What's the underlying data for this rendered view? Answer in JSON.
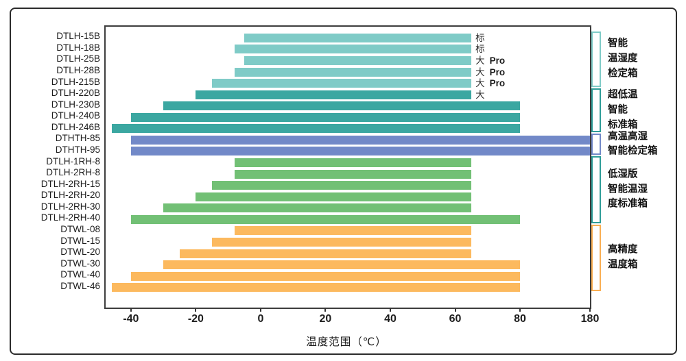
{
  "chart_data": {
    "type": "bar",
    "orientation": "horizontal",
    "title": "",
    "xlabel": "温度范围（℃）",
    "ylabel": "",
    "grid": false,
    "xlim": [
      -48,
      180
    ],
    "axis_break": {
      "note": "linear from -48 to 80, compressed segment 80 to 180 at right edge",
      "linear_max": 80,
      "max": 180
    },
    "x_ticks": [
      {
        "value": -40,
        "label": "-40"
      },
      {
        "value": -20,
        "label": "-20"
      },
      {
        "value": 0,
        "label": "0"
      },
      {
        "value": 20,
        "label": "20"
      },
      {
        "value": 40,
        "label": "40"
      },
      {
        "value": 60,
        "label": "60"
      },
      {
        "value": 80,
        "label": "80"
      },
      {
        "value": 180,
        "label": "180"
      }
    ],
    "rows": [
      {
        "model": "DTLH-15B",
        "start": -5,
        "end": 65,
        "group": 0,
        "annotation_cn": "标",
        "annotation_pro": ""
      },
      {
        "model": "DTLH-18B",
        "start": -8,
        "end": 65,
        "group": 0,
        "annotation_cn": "标",
        "annotation_pro": ""
      },
      {
        "model": "DTLH-25B",
        "start": -5,
        "end": 65,
        "group": 0,
        "annotation_cn": "大",
        "annotation_pro": "Pro"
      },
      {
        "model": "DTLH-28B",
        "start": -8,
        "end": 65,
        "group": 0,
        "annotation_cn": "大",
        "annotation_pro": "Pro"
      },
      {
        "model": "DTLH-215B",
        "start": -15,
        "end": 65,
        "group": 0,
        "annotation_cn": "大",
        "annotation_pro": "Pro"
      },
      {
        "model": "DTLH-220B",
        "start": -20,
        "end": 65,
        "group": 1,
        "annotation_cn": "大",
        "annotation_pro": ""
      },
      {
        "model": "DTLH-230B",
        "start": -30,
        "end": 80,
        "group": 1,
        "annotation_cn": "",
        "annotation_pro": ""
      },
      {
        "model": "DTLH-240B",
        "start": -40,
        "end": 80,
        "group": 1,
        "annotation_cn": "",
        "annotation_pro": ""
      },
      {
        "model": "DTLH-246B",
        "start": -46,
        "end": 80,
        "group": 1,
        "annotation_cn": "",
        "annotation_pro": ""
      },
      {
        "model": "DTHTH-85",
        "start": -40,
        "end": 180,
        "group": 2,
        "annotation_cn": "",
        "annotation_pro": ""
      },
      {
        "model": "DTHTH-95",
        "start": -40,
        "end": 180,
        "group": 2,
        "annotation_cn": "",
        "annotation_pro": ""
      },
      {
        "model": "DTLH-1RH-8",
        "start": -8,
        "end": 65,
        "group": 3,
        "annotation_cn": "",
        "annotation_pro": ""
      },
      {
        "model": "DTLH-2RH-8",
        "start": -8,
        "end": 65,
        "group": 3,
        "annotation_cn": "",
        "annotation_pro": ""
      },
      {
        "model": "DTLH-2RH-15",
        "start": -15,
        "end": 65,
        "group": 3,
        "annotation_cn": "",
        "annotation_pro": ""
      },
      {
        "model": "DTLH-2RH-20",
        "start": -20,
        "end": 65,
        "group": 3,
        "annotation_cn": "",
        "annotation_pro": ""
      },
      {
        "model": "DTLH-2RH-30",
        "start": -30,
        "end": 65,
        "group": 3,
        "annotation_cn": "",
        "annotation_pro": ""
      },
      {
        "model": "DTLH-2RH-40",
        "start": -40,
        "end": 80,
        "group": 3,
        "annotation_cn": "",
        "annotation_pro": ""
      },
      {
        "model": "DTWL-08",
        "start": -8,
        "end": 65,
        "group": 4,
        "annotation_cn": "",
        "annotation_pro": ""
      },
      {
        "model": "DTWL-15",
        "start": -15,
        "end": 65,
        "group": 4,
        "annotation_cn": "",
        "annotation_pro": ""
      },
      {
        "model": "DTWL-20",
        "start": -25,
        "end": 65,
        "group": 4,
        "annotation_cn": "",
        "annotation_pro": ""
      },
      {
        "model": "DTWL-30",
        "start": -30,
        "end": 80,
        "group": 4,
        "annotation_cn": "",
        "annotation_pro": ""
      },
      {
        "model": "DTWL-40",
        "start": -40,
        "end": 80,
        "group": 4,
        "annotation_cn": "",
        "annotation_pro": ""
      },
      {
        "model": "DTWL-46",
        "start": -46,
        "end": 80,
        "group": 4,
        "annotation_cn": "",
        "annotation_pro": ""
      }
    ],
    "groups": [
      {
        "label": "智能温湿度检定箱",
        "label_lines": [
          "智能",
          "温湿度",
          "检定箱"
        ],
        "bar_color": "#7fcbc7",
        "bracket_color": "#7fcbc7",
        "row_first": 0,
        "row_last": 4
      },
      {
        "label": "超低温智能标准箱",
        "label_lines": [
          "超低温",
          "智能",
          "标准箱"
        ],
        "bar_color": "#3ba7a1",
        "bracket_color": "#2e9d98",
        "row_first": 5,
        "row_last": 8
      },
      {
        "label": "高温高湿智能检定箱",
        "label_lines": [
          "高温高湿",
          "智能检定箱"
        ],
        "bar_color": "#7289c8",
        "bracket_color": "#7289c8",
        "row_first": 9,
        "row_last": 10
      },
      {
        "label": "低湿版智能温湿度标准箱",
        "label_lines": [
          "低湿版",
          "智能温湿",
          "度标准箱"
        ],
        "bar_color": "#72c075",
        "bracket_color": "#2e9d98",
        "row_first": 11,
        "row_last": 16
      },
      {
        "label": "高精度温度箱",
        "label_lines": [
          "高精度",
          "温度箱"
        ],
        "bar_color": "#fcb95e",
        "bracket_color": "#f9ae52",
        "row_first": 17,
        "row_last": 22
      }
    ],
    "colors": {
      "plot_border": "#3d3d3d",
      "outer_border": "#2b2b2b",
      "text": "#1d1d1d",
      "background": "#ffffff"
    }
  }
}
